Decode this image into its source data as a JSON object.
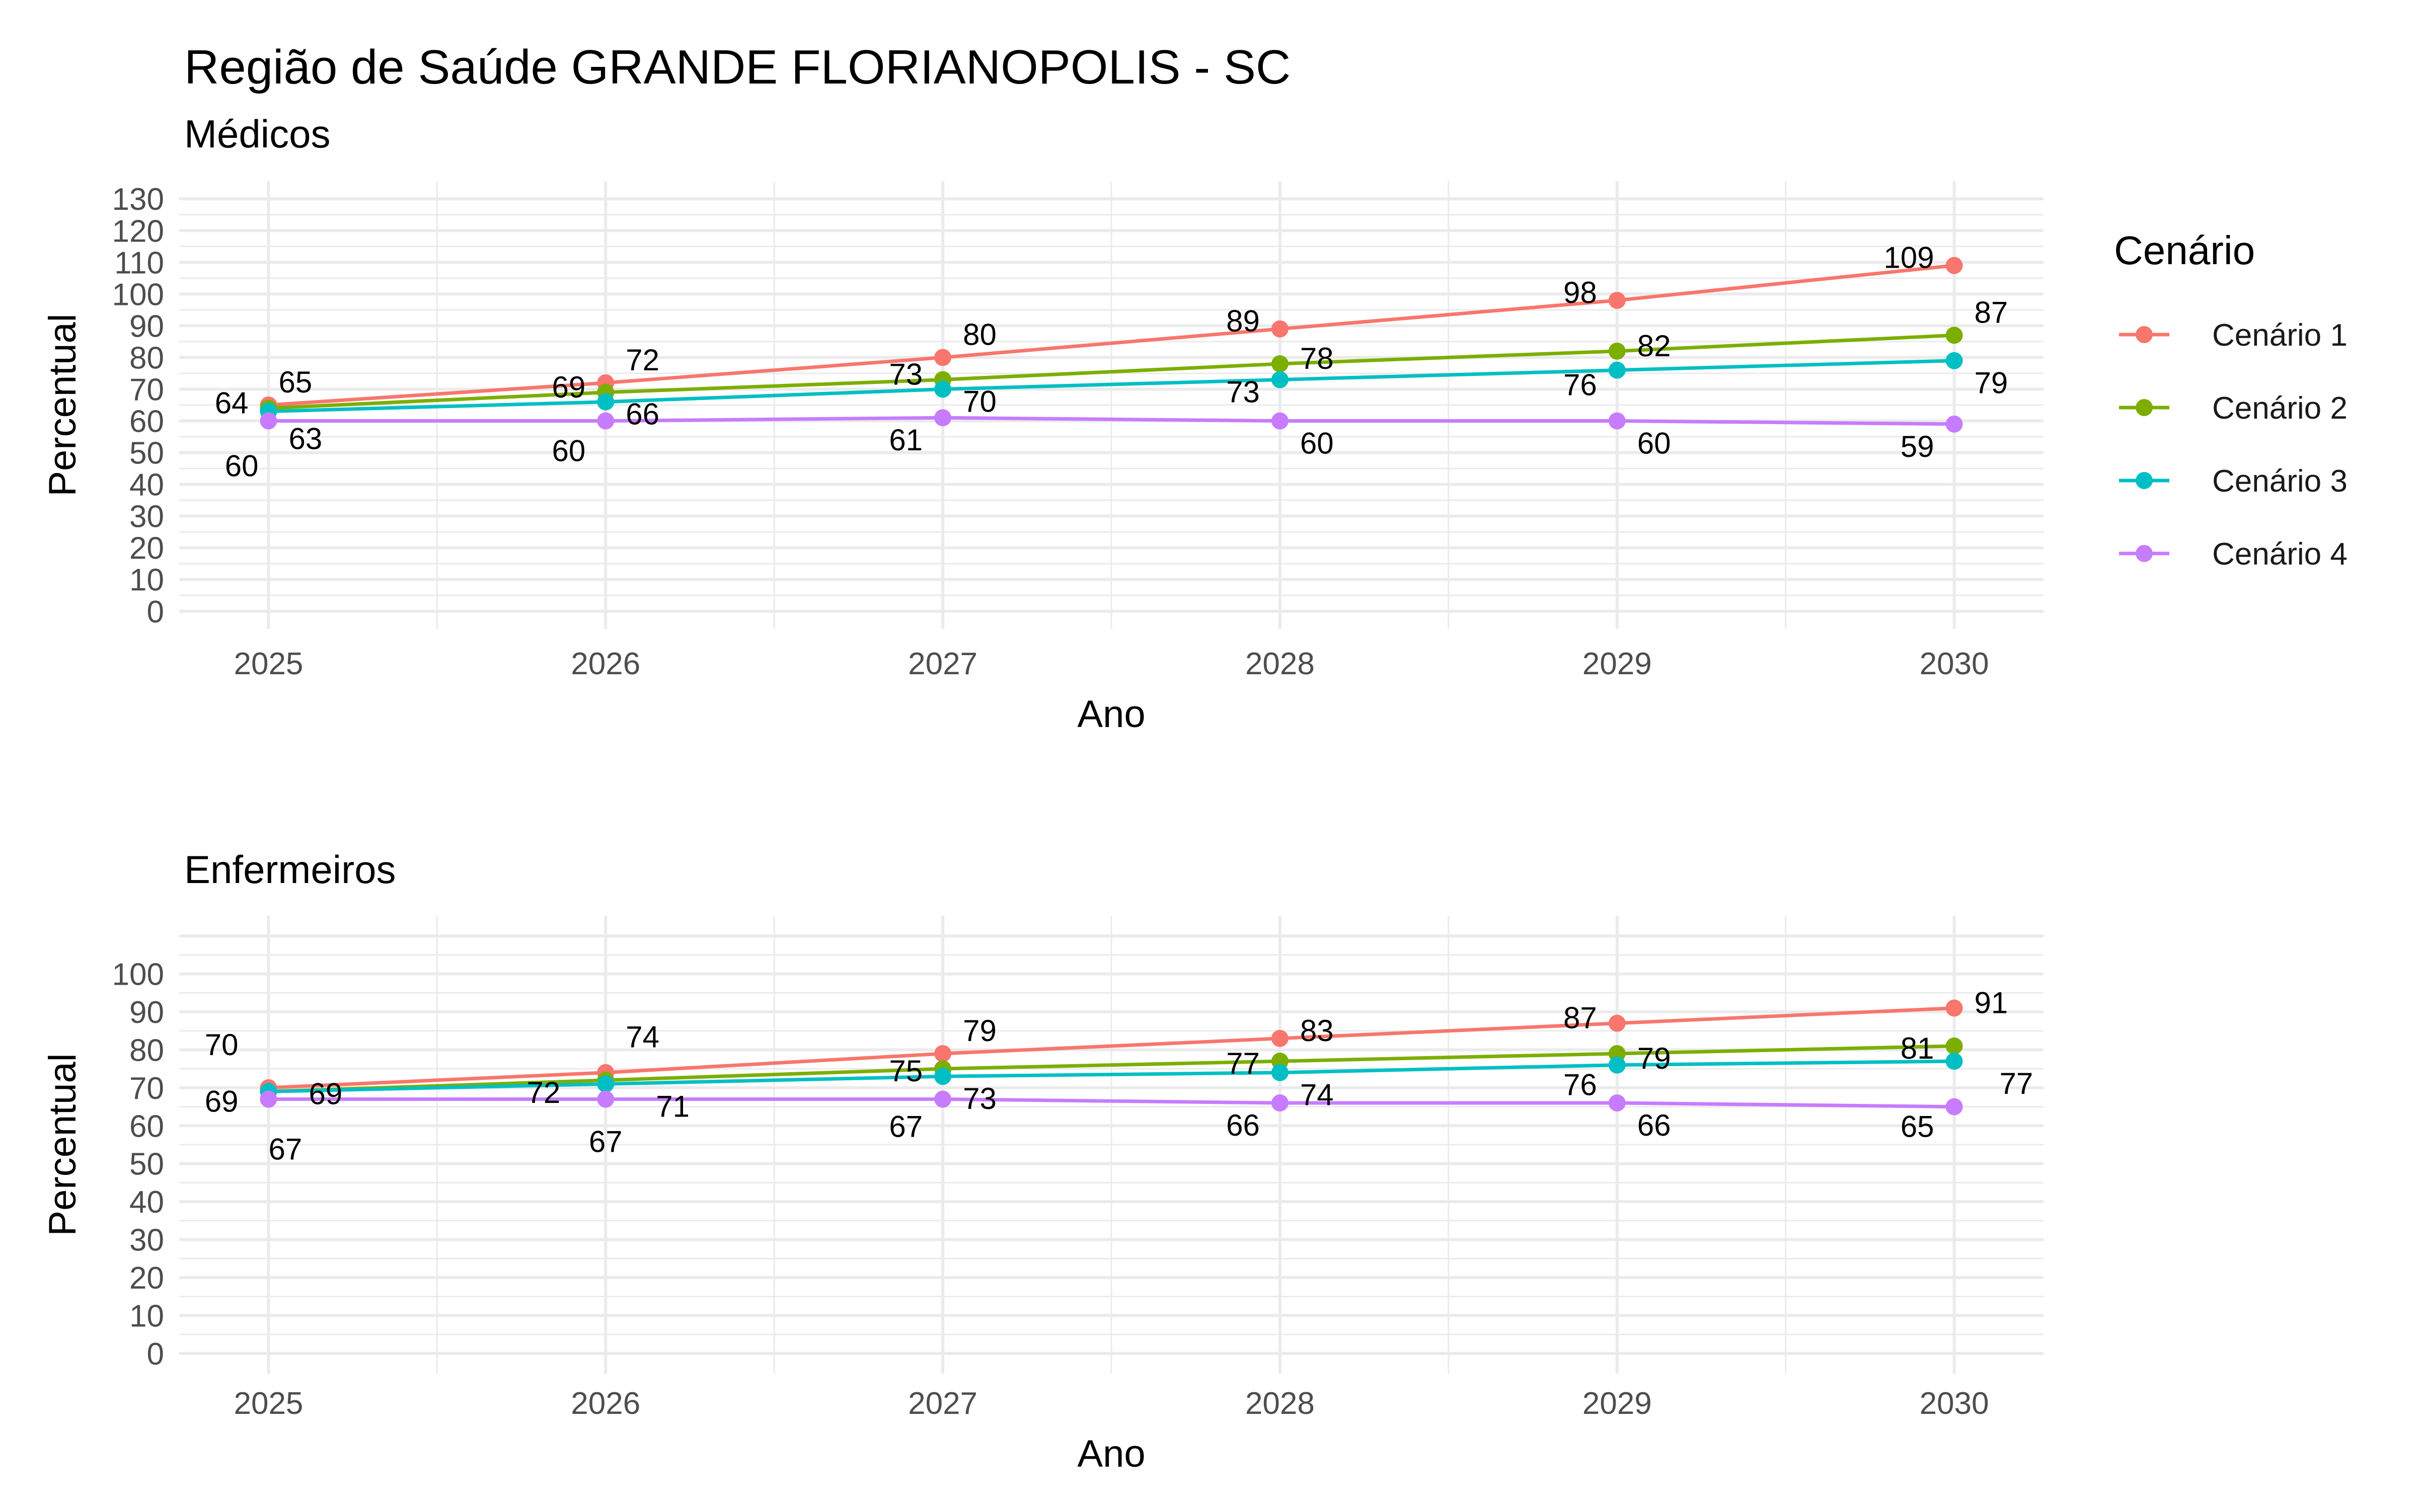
{
  "title": "Região de Saúde GRANDE FLORIANOPOLIS - SC",
  "legend": {
    "title": "Cenário",
    "items": [
      {
        "label": "Cenário 1",
        "color": "#F8766D"
      },
      {
        "label": "Cenário 2",
        "color": "#7CAE00"
      },
      {
        "label": "Cenário 3",
        "color": "#00BFC4"
      },
      {
        "label": "Cenário 4",
        "color": "#C77CFF"
      }
    ]
  },
  "chart_data": [
    {
      "type": "line",
      "subtitle": "Médicos",
      "xlabel": "Ano",
      "ylabel": "Percentual",
      "x": [
        "2025",
        "2026",
        "2027",
        "2028",
        "2029",
        "2030"
      ],
      "yticks": [
        "0",
        "10",
        "20",
        "30",
        "40",
        "50",
        "60",
        "70",
        "80",
        "90",
        "100",
        "110",
        "120",
        "130"
      ],
      "ylim": [
        -4,
        134
      ],
      "grid": true,
      "legend_position": "right",
      "series": [
        {
          "name": "Cenário 1",
          "values": [
            65,
            72,
            80,
            89,
            98,
            109
          ]
        },
        {
          "name": "Cenário 2",
          "values": [
            64,
            69,
            73,
            78,
            82,
            87
          ]
        },
        {
          "name": "Cenário 3",
          "values": [
            63,
            66,
            70,
            73,
            76,
            79
          ]
        },
        {
          "name": "Cenário 4",
          "values": [
            60,
            60,
            61,
            60,
            60,
            59
          ]
        }
      ]
    },
    {
      "type": "line",
      "subtitle": "Enfermeiros",
      "xlabel": "Ano",
      "ylabel": "Percentual",
      "x": [
        "2025",
        "2026",
        "2027",
        "2028",
        "2029",
        "2030"
      ],
      "yticks": [
        "0",
        "10",
        "20",
        "30",
        "40",
        "50",
        "60",
        "70",
        "80",
        "90",
        "100"
      ],
      "ylim": [
        -4,
        114
      ],
      "grid": true,
      "legend_position": "right",
      "series": [
        {
          "name": "Cenário 1",
          "values": [
            70,
            74,
            79,
            83,
            87,
            91
          ]
        },
        {
          "name": "Cenário 2",
          "values": [
            69,
            72,
            75,
            77,
            79,
            81
          ]
        },
        {
          "name": "Cenário 3",
          "values": [
            69,
            71,
            73,
            74,
            76,
            77
          ]
        },
        {
          "name": "Cenário 4",
          "values": [
            67,
            67,
            67,
            66,
            66,
            65
          ]
        }
      ]
    }
  ]
}
